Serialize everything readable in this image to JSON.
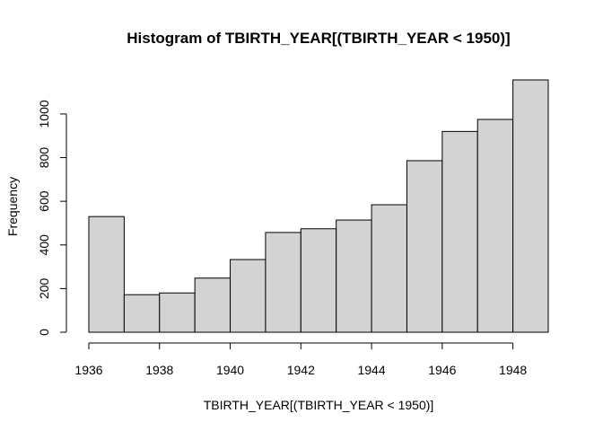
{
  "chart_data": {
    "type": "bar",
    "title": "Histogram of TBIRTH_YEAR[(TBIRTH_YEAR < 1950)]",
    "xlabel": "TBIRTH_YEAR[(TBIRTH_YEAR < 1950)]",
    "ylabel": "Frequency",
    "bins": [
      {
        "start": 1936,
        "end": 1937,
        "count": 530
      },
      {
        "start": 1937,
        "end": 1938,
        "count": 172
      },
      {
        "start": 1938,
        "end": 1939,
        "count": 180
      },
      {
        "start": 1939,
        "end": 1940,
        "count": 248
      },
      {
        "start": 1940,
        "end": 1941,
        "count": 333
      },
      {
        "start": 1941,
        "end": 1942,
        "count": 457
      },
      {
        "start": 1942,
        "end": 1943,
        "count": 474
      },
      {
        "start": 1943,
        "end": 1944,
        "count": 514
      },
      {
        "start": 1944,
        "end": 1945,
        "count": 584
      },
      {
        "start": 1945,
        "end": 1946,
        "count": 786
      },
      {
        "start": 1946,
        "end": 1947,
        "count": 920
      },
      {
        "start": 1947,
        "end": 1948,
        "count": 975
      },
      {
        "start": 1948,
        "end": 1949,
        "count": 1156
      }
    ],
    "xlim": [
      1936,
      1949
    ],
    "ylim": [
      0,
      1156
    ],
    "x_ticks": [
      1936,
      1938,
      1940,
      1942,
      1944,
      1946,
      1948
    ],
    "y_ticks": [
      0,
      200,
      400,
      600,
      800,
      1000
    ],
    "bar_color": "#d3d3d3",
    "grid": false,
    "legend": "none"
  }
}
